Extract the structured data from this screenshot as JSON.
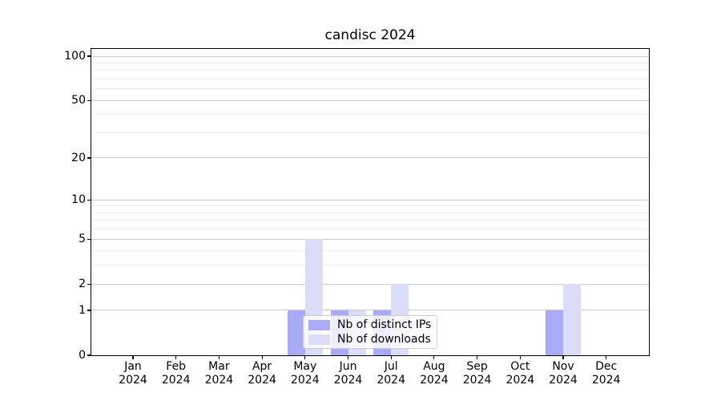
{
  "chart_data": {
    "type": "bar",
    "title": "candisc 2024",
    "categories": [
      "Jan",
      "Feb",
      "Mar",
      "Apr",
      "May",
      "Jun",
      "Jul",
      "Aug",
      "Sep",
      "Oct",
      "Nov",
      "Dec"
    ],
    "category_year": "2024",
    "series": [
      {
        "name": "Nb of distinct IPs",
        "color": "#aaabf6",
        "values": [
          0,
          0,
          0,
          0,
          1,
          1,
          1,
          0,
          0,
          0,
          1,
          0
        ]
      },
      {
        "name": "Nb of downloads",
        "color": "#dbdcf8",
        "values": [
          0,
          0,
          0,
          0,
          5,
          1,
          2,
          0,
          0,
          0,
          2,
          0
        ]
      }
    ],
    "xlabel": "",
    "ylabel": "",
    "y_scale": "log1p",
    "y_major_ticks": [
      0,
      1,
      2,
      5,
      10,
      20,
      50,
      100
    ],
    "y_minor_ticks": [
      3,
      4,
      6,
      7,
      8,
      9,
      30,
      40,
      60,
      70,
      80,
      90
    ],
    "ylim": [
      0,
      110
    ],
    "grid": true,
    "legend_position": "lower-center",
    "colors": {
      "major_grid": "#cccccc",
      "minor_grid": "#ececec",
      "axis": "#000000",
      "background": "#ffffff",
      "text": "#000000"
    }
  }
}
